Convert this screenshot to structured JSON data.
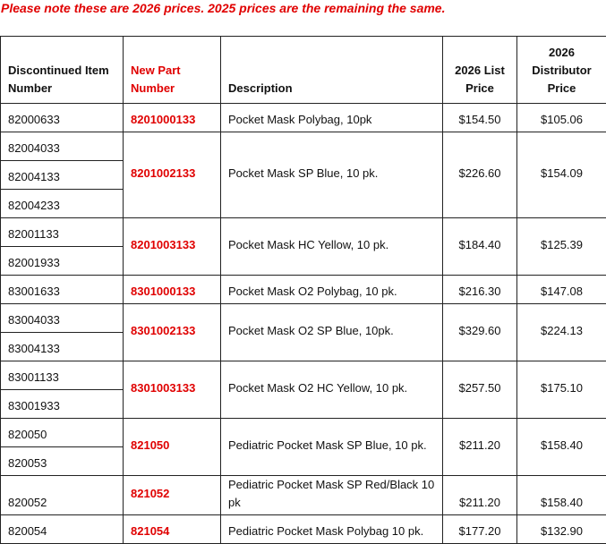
{
  "note": "Please note these are 2026 prices. 2025 prices are the remaining the same.",
  "table": {
    "headers": [
      "Discontinued Item Number",
      "New Part Number",
      "Description",
      "2026 List Price",
      "2026 Distributor Price"
    ],
    "rows": [
      {
        "discontinued": [
          "82000633"
        ],
        "new_part": "8201000133",
        "description": "Pocket Mask Polybag, 10pk",
        "list_price": "$154.50",
        "distributor_price": "$105.06"
      },
      {
        "discontinued": [
          "82004033",
          "82004133",
          "82004233"
        ],
        "new_part": "8201002133",
        "description": "Pocket Mask SP Blue, 10 pk.",
        "list_price": "$226.60",
        "distributor_price": "$154.09"
      },
      {
        "discontinued": [
          "82001133",
          "82001933"
        ],
        "new_part": "8201003133",
        "description": "Pocket Mask HC Yellow, 10 pk.",
        "list_price": "$184.40",
        "distributor_price": "$125.39"
      },
      {
        "discontinued": [
          "83001633"
        ],
        "new_part": "8301000133",
        "description": "Pocket Mask O2 Polybag, 10 pk.",
        "list_price": "$216.30",
        "distributor_price": "$147.08"
      },
      {
        "discontinued": [
          "83004033",
          "83004133"
        ],
        "new_part": "8301002133",
        "description": "Pocket Mask O2 SP Blue, 10pk.",
        "list_price": "$329.60",
        "distributor_price": "$224.13"
      },
      {
        "discontinued": [
          "83001133",
          "83001933"
        ],
        "new_part": "8301003133",
        "description": "Pocket Mask O2 HC Yellow, 10 pk.",
        "list_price": "$257.50",
        "distributor_price": "$175.10"
      },
      {
        "discontinued": [
          "820050",
          "820053"
        ],
        "new_part": "821050",
        "description": "Pediatric Pocket Mask SP Blue, 10 pk.",
        "list_price": "$211.20",
        "distributor_price": "$158.40"
      },
      {
        "discontinued": [
          "820052"
        ],
        "new_part": "821052",
        "description": "Pediatric Pocket Mask SP Red/Black 10 pk",
        "list_price": "$211.20",
        "distributor_price": "$158.40"
      },
      {
        "discontinued": [
          "820054"
        ],
        "new_part": "821054",
        "description": "Pediatric Pocket Mask Polybag 10 pk.",
        "list_price": "$177.20",
        "distributor_price": "$132.90"
      }
    ]
  }
}
